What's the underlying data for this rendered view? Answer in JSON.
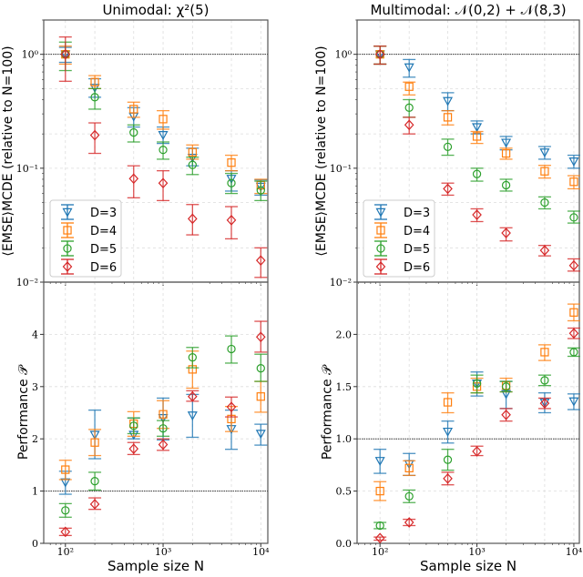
{
  "colors": {
    "D=3": "#1f77b4",
    "D=4": "#ff7f0e",
    "D=5": "#2ca02c",
    "D=6": "#d62728"
  },
  "markers": {
    "D=3": "triangle-down",
    "D=4": "square",
    "D=5": "circle",
    "D=6": "diamond"
  },
  "chart_data": [
    {
      "type": "scatter",
      "panel": "top-left",
      "title": "Unimodal: χ²(5)",
      "xlabel": "",
      "ylabel": "⟨EMSE⟩MCDE (relative to N=100)",
      "xscale": "log",
      "yscale": "log",
      "xlim": [
        60,
        11800
      ],
      "ylim": [
        0.01,
        2.0
      ],
      "xticks": [
        100,
        1000,
        10000
      ],
      "xtick_labels": [
        "",
        "",
        ""
      ],
      "yticks": [
        1,
        0.1,
        0.01
      ],
      "ytick_labels": [
        "10⁰",
        "10⁻¹",
        "10⁻²"
      ],
      "reference_line": 1,
      "grid": true,
      "legend": "bottom-left",
      "x": [
        100,
        200,
        500,
        1000,
        2000,
        5000,
        10000
      ],
      "series": [
        {
          "name": "D=3",
          "values": [
            1.0,
            0.51,
            0.285,
            0.196,
            0.124,
            0.081,
            0.069
          ],
          "err_low": [
            0.85,
            0.42,
            0.23,
            0.165,
            0.105,
            0.063,
            0.058
          ],
          "err_high": [
            1.15,
            0.61,
            0.34,
            0.23,
            0.15,
            0.095,
            0.079
          ]
        },
        {
          "name": "D=4",
          "values": [
            1.0,
            0.57,
            0.33,
            0.27,
            0.138,
            0.112,
            0.071
          ],
          "err_low": [
            0.82,
            0.5,
            0.28,
            0.22,
            0.12,
            0.095,
            0.06
          ],
          "err_high": [
            1.18,
            0.65,
            0.38,
            0.32,
            0.16,
            0.13,
            0.08
          ]
        },
        {
          "name": "D=5",
          "values": [
            1.0,
            0.42,
            0.206,
            0.145,
            0.107,
            0.074,
            0.064
          ],
          "err_low": [
            0.72,
            0.33,
            0.17,
            0.12,
            0.088,
            0.06,
            0.052
          ],
          "err_high": [
            1.28,
            0.5,
            0.24,
            0.17,
            0.125,
            0.09,
            0.077
          ]
        },
        {
          "name": "D=6",
          "values": [
            1.0,
            0.195,
            0.081,
            0.074,
            0.036,
            0.035,
            0.0155
          ],
          "err_low": [
            0.58,
            0.135,
            0.055,
            0.052,
            0.026,
            0.024,
            0.011
          ],
          "err_high": [
            1.42,
            0.25,
            0.105,
            0.095,
            0.048,
            0.046,
            0.02
          ]
        }
      ]
    },
    {
      "type": "scatter",
      "panel": "bottom-left",
      "title": "",
      "xlabel": "Sample size N",
      "ylabel": "Performance 𝒫",
      "xscale": "log",
      "yscale": "linear",
      "xlim": [
        60,
        11800
      ],
      "ylim": [
        0,
        5
      ],
      "xticks": [
        100,
        1000,
        10000
      ],
      "xtick_labels": [
        "10²",
        "10³",
        "10⁴"
      ],
      "yticks": [
        0,
        1,
        2,
        3,
        4
      ],
      "ytick_labels": [
        "0",
        "1",
        "2",
        "3",
        "4"
      ],
      "reference_line": 1,
      "grid": true,
      "x": [
        100,
        200,
        500,
        1000,
        2000,
        5000,
        10000
      ],
      "series": [
        {
          "name": "D=3",
          "values": [
            1.17,
            2.08,
            2.08,
            2.4,
            2.45,
            2.19,
            2.1
          ],
          "err_low": [
            0.94,
            1.62,
            2.0,
            1.98,
            2.03,
            1.8,
            1.88
          ],
          "err_high": [
            1.38,
            2.55,
            2.4,
            2.78,
            2.85,
            2.55,
            2.28
          ]
        },
        {
          "name": "D=4",
          "values": [
            1.41,
            1.93,
            2.29,
            2.47,
            3.33,
            2.38,
            2.81
          ],
          "err_low": [
            1.22,
            1.68,
            2.05,
            2.2,
            2.97,
            2.14,
            2.51
          ],
          "err_high": [
            1.59,
            2.18,
            2.52,
            2.73,
            3.68,
            2.62,
            3.1
          ]
        },
        {
          "name": "D=5",
          "values": [
            0.63,
            1.19,
            2.25,
            2.2,
            3.56,
            3.72,
            3.35
          ],
          "err_low": [
            0.5,
            1.02,
            2.1,
            2.05,
            3.36,
            3.45,
            3.1
          ],
          "err_high": [
            0.76,
            1.36,
            2.4,
            2.35,
            3.75,
            3.97,
            3.62
          ]
        },
        {
          "name": "D=6",
          "values": [
            0.22,
            0.75,
            1.81,
            1.89,
            2.81,
            2.61,
            3.95
          ],
          "err_low": [
            0.15,
            0.65,
            1.7,
            1.78,
            2.72,
            2.42,
            3.66
          ],
          "err_high": [
            0.29,
            0.87,
            1.93,
            2.0,
            2.92,
            2.8,
            4.25
          ]
        }
      ]
    },
    {
      "type": "scatter",
      "panel": "top-right",
      "title": "Multimodal: 𝒩(0,2) + 𝒩(8,3)",
      "xlabel": "",
      "ylabel": "⟨EMSE⟩MCDE (relative to N=100)",
      "xscale": "log",
      "yscale": "log",
      "xlim": [
        58,
        11400
      ],
      "ylim": [
        0.01,
        2.0
      ],
      "xticks": [
        100,
        1000,
        10000
      ],
      "xtick_labels": [
        "",
        "",
        ""
      ],
      "yticks": [
        1,
        0.1,
        0.01
      ],
      "ytick_labels": [
        "10⁰",
        "10⁻¹",
        "10⁻²"
      ],
      "reference_line": 1,
      "grid": true,
      "legend": "bottom-left",
      "x": [
        100,
        200,
        500,
        1000,
        2000,
        5000,
        10000
      ],
      "series": [
        {
          "name": "D=3",
          "values": [
            1.0,
            0.77,
            0.39,
            0.23,
            0.168,
            0.138,
            0.115
          ],
          "err_low": [
            0.82,
            0.63,
            0.32,
            0.2,
            0.145,
            0.12,
            0.1
          ],
          "err_high": [
            1.18,
            0.9,
            0.46,
            0.26,
            0.19,
            0.155,
            0.13
          ]
        },
        {
          "name": "D=4",
          "values": [
            1.0,
            0.52,
            0.28,
            0.19,
            0.135,
            0.094,
            0.076
          ],
          "err_low": [
            0.82,
            0.44,
            0.24,
            0.165,
            0.12,
            0.082,
            0.066
          ],
          "err_high": [
            1.18,
            0.57,
            0.32,
            0.21,
            0.15,
            0.106,
            0.086
          ]
        },
        {
          "name": "D=5",
          "values": [
            1.0,
            0.34,
            0.154,
            0.089,
            0.071,
            0.05,
            0.037
          ],
          "err_low": [
            0.82,
            0.28,
            0.13,
            0.077,
            0.063,
            0.044,
            0.033
          ],
          "err_high": [
            1.18,
            0.4,
            0.18,
            0.1,
            0.08,
            0.056,
            0.042
          ]
        },
        {
          "name": "D=6",
          "values": [
            1.0,
            0.24,
            0.066,
            0.039,
            0.027,
            0.019,
            0.014
          ],
          "err_low": [
            0.82,
            0.2,
            0.058,
            0.034,
            0.023,
            0.017,
            0.0125
          ],
          "err_high": [
            1.18,
            0.28,
            0.074,
            0.044,
            0.03,
            0.021,
            0.016
          ]
        }
      ]
    },
    {
      "type": "scatter",
      "panel": "bottom-right",
      "title": "",
      "xlabel": "Sample size N",
      "ylabel": "Performance 𝒫",
      "xscale": "log",
      "yscale": "linear",
      "xlim": [
        58,
        11400
      ],
      "ylim": [
        0,
        2.5
      ],
      "xticks": [
        100,
        1000,
        10000
      ],
      "xtick_labels": [
        "10²",
        "10³",
        "10⁴"
      ],
      "yticks": [
        0,
        0.5,
        1.0,
        1.5,
        2.0
      ],
      "ytick_labels": [
        "0.0",
        "0.5",
        "1.0",
        "1.5",
        "2.0"
      ],
      "reference_line": 1,
      "grid": true,
      "x": [
        100,
        200,
        500,
        1000,
        2000,
        5000,
        10000
      ],
      "series": [
        {
          "name": "D=3",
          "values": [
            0.79,
            0.76,
            1.07,
            1.53,
            1.43,
            1.35,
            1.36
          ],
          "err_low": [
            0.67,
            0.65,
            0.96,
            1.41,
            1.29,
            1.25,
            1.28
          ],
          "err_high": [
            0.9,
            0.86,
            1.17,
            1.64,
            1.55,
            1.44,
            1.43
          ]
        },
        {
          "name": "D=4",
          "values": [
            0.5,
            0.72,
            1.35,
            1.5,
            1.51,
            1.83,
            2.21
          ],
          "err_low": [
            0.41,
            0.65,
            1.25,
            1.44,
            1.45,
            1.75,
            2.13
          ],
          "err_high": [
            0.59,
            0.79,
            1.44,
            1.58,
            1.58,
            1.9,
            2.29
          ]
        },
        {
          "name": "D=5",
          "values": [
            0.17,
            0.45,
            0.8,
            1.53,
            1.5,
            1.56,
            1.83
          ],
          "err_low": [
            0.14,
            0.39,
            0.7,
            1.44,
            1.45,
            1.51,
            1.79
          ],
          "err_high": [
            0.2,
            0.51,
            0.9,
            1.61,
            1.55,
            1.61,
            1.87
          ]
        },
        {
          "name": "D=6",
          "values": [
            0.05,
            0.2,
            0.62,
            0.88,
            1.23,
            1.34,
            2.01
          ],
          "err_low": [
            0.03,
            0.17,
            0.56,
            0.84,
            1.17,
            1.29,
            1.96
          ],
          "err_high": [
            0.06,
            0.23,
            0.68,
            0.93,
            1.29,
            1.39,
            2.06
          ]
        }
      ]
    }
  ]
}
